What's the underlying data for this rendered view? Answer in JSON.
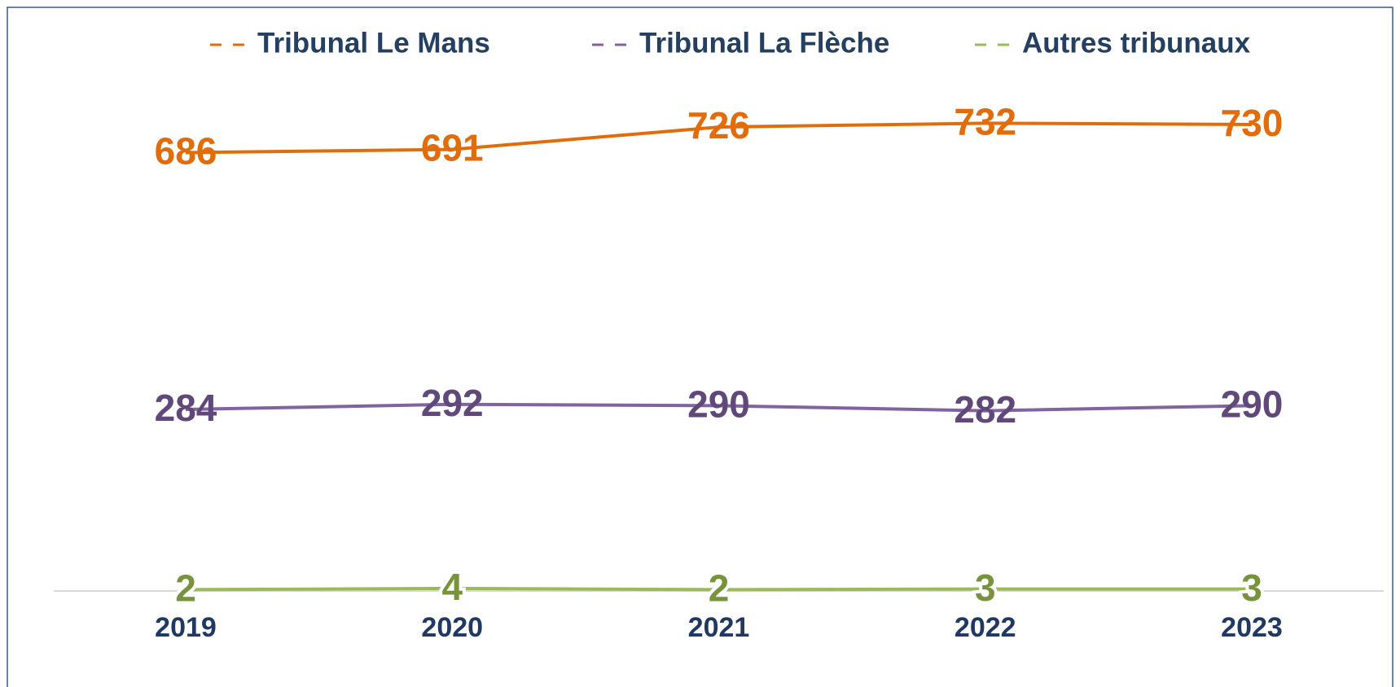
{
  "chart_data": {
    "type": "line",
    "categories": [
      "2019",
      "2020",
      "2021",
      "2022",
      "2023"
    ],
    "series": [
      {
        "name": "Tribunal Le Mans",
        "color": "#e36c0a",
        "label_color": "#e36c0a",
        "values": [
          686,
          691,
          726,
          732,
          730
        ]
      },
      {
        "name": "Tribunal La Flèche",
        "color": "#8064a2",
        "label_color": "#60497a",
        "values": [
          284,
          292,
          290,
          282,
          290
        ]
      },
      {
        "name": "Autres tribunaux",
        "color": "#9bbb59",
        "label_color": "#77933c",
        "values": [
          2,
          4,
          2,
          3,
          3
        ]
      }
    ],
    "ylim": [
      0,
      800
    ],
    "legend": "top"
  }
}
